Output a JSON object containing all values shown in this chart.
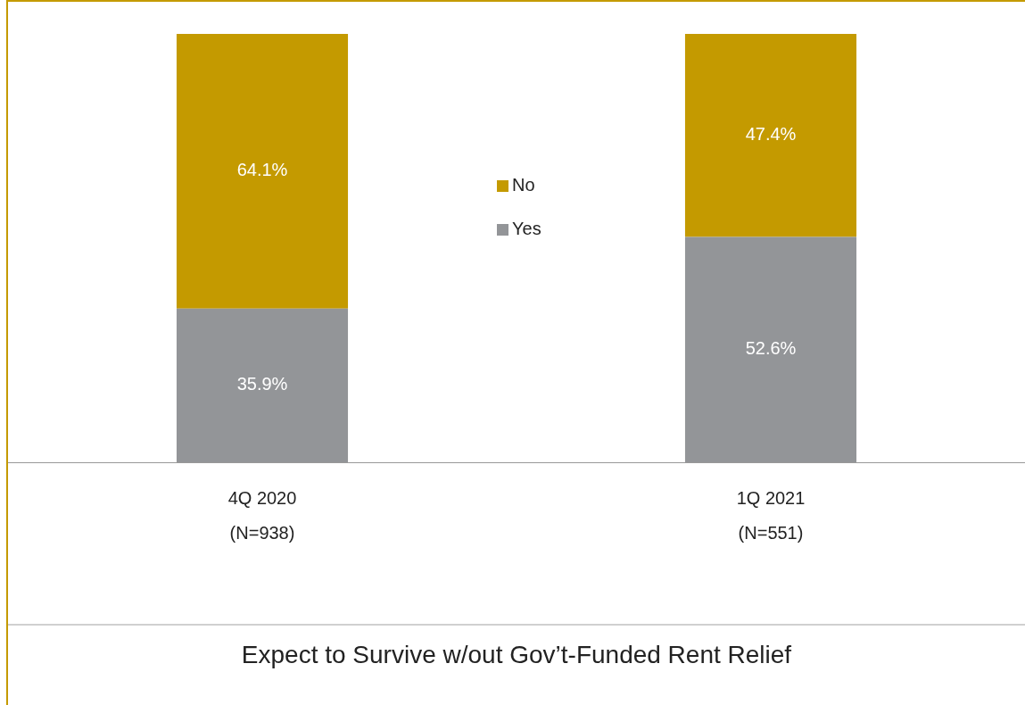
{
  "chart_data": {
    "type": "bar",
    "stacked": true,
    "xlabel": "Expect to Survive w/out Gov’t-Funded Rent Relief",
    "categories": [
      "4Q 2020\n(N=938)",
      "1Q 2021\n(N=551)"
    ],
    "series": [
      {
        "name": "Yes",
        "color": "#939598",
        "values": [
          35.9,
          52.6
        ],
        "value_labels": [
          "35.9%",
          "52.6%"
        ]
      },
      {
        "name": "No",
        "color": "#c49a00",
        "values": [
          64.1,
          47.4
        ],
        "value_labels": [
          "64.1%",
          "47.4%"
        ]
      }
    ],
    "ylim": [
      0,
      100
    ],
    "tick_labels": "x",
    "grid": false,
    "legend": "center"
  }
}
